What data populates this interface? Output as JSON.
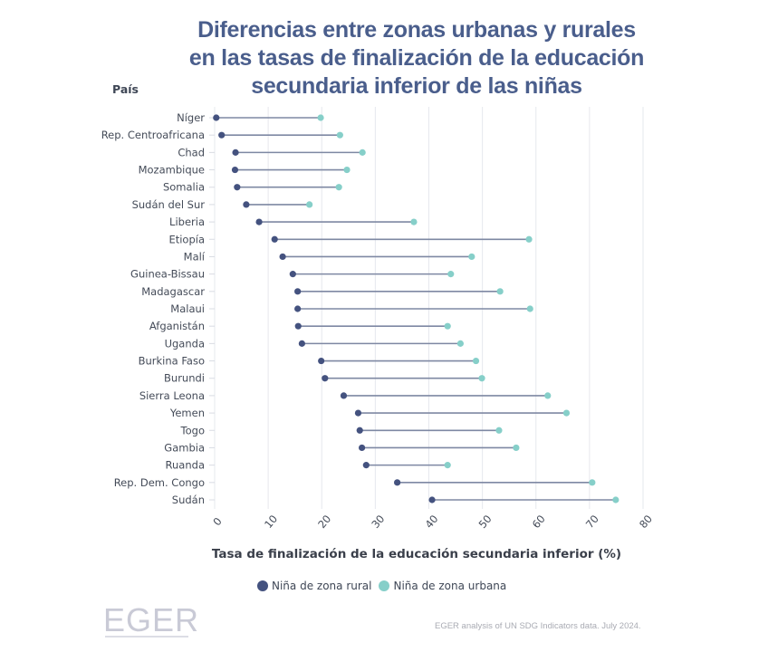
{
  "chart_data": {
    "type": "dumbbell",
    "title": "Diferencias entre zonas urbanas y rurales en las tasas de finalización de la educación secundaria inferior de las niñas",
    "title_lines": [
      "Diferencias entre zonas urbanas y rurales",
      "en las tasas de finalización de la educación",
      "secundaria inferior de las niñas"
    ],
    "ylabel": "País",
    "xlabel": "Tasa de finalización de la educación secundaria inferior (%)",
    "xlim": [
      0,
      80
    ],
    "xticks": [
      "0",
      "10",
      "20",
      "30",
      "40",
      "50",
      "60",
      "70",
      "80"
    ],
    "grid": true,
    "legend_position": "bottom",
    "categories": [
      "Níger",
      "Rep. Centroafricana",
      "Chad",
      "Mozambique",
      "Somalia",
      "Sudán del Sur",
      "Liberia",
      "Etiopía",
      "Malí",
      "Guinea-Bissau",
      "Madagascar",
      "Malaui",
      "Afganistán",
      "Uganda",
      "Burkina Faso",
      "Burundi",
      "Sierra Leona",
      "Yemen",
      "Togo",
      "Gambia",
      "Ruanda",
      "Rep. Dem. Congo",
      "Sudán"
    ],
    "series": [
      {
        "name": "Niña de zona rural",
        "color": "#44527f",
        "values": [
          0.3,
          1.3,
          3.9,
          3.8,
          4.2,
          5.9,
          8.3,
          11.2,
          12.7,
          14.6,
          15.5,
          15.5,
          15.6,
          16.3,
          19.9,
          20.6,
          24.1,
          26.8,
          27.1,
          27.5,
          28.3,
          34.1,
          40.6
        ]
      },
      {
        "name": "Niña de zona urbana",
        "color": "#86cfc9",
        "values": [
          19.8,
          23.4,
          27.6,
          24.7,
          23.2,
          17.7,
          37.2,
          58.7,
          48.0,
          44.1,
          53.3,
          58.9,
          43.5,
          45.9,
          48.8,
          49.9,
          62.2,
          65.7,
          53.1,
          56.3,
          43.5,
          70.5,
          74.9
        ]
      }
    ],
    "line_color": "#7e88a3"
  },
  "logo_text": "EGER",
  "source": "EGER analysis of UN SDG Indicators data. July 2024."
}
